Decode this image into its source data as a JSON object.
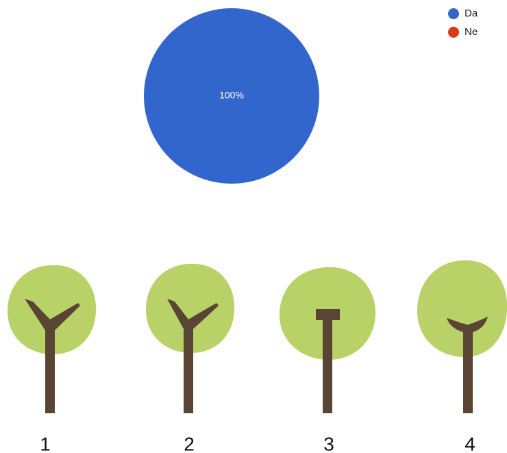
{
  "chart_data": {
    "type": "pie",
    "categories": [
      "Da",
      "Ne"
    ],
    "values": [
      100,
      0
    ],
    "value_labels": [
      "100%",
      null
    ],
    "colors": [
      "#3366cc",
      "#dc3912"
    ],
    "legend": "top-right"
  },
  "figures": {
    "labels": [
      "1",
      "2",
      "3",
      "4"
    ]
  }
}
